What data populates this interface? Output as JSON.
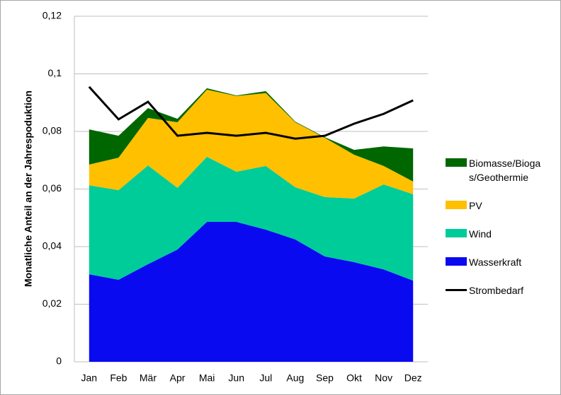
{
  "chart_data": {
    "type": "area",
    "y_label": "Monatliche Anteil an  der Jahrespoduktion",
    "categories": [
      "Jan",
      "Feb",
      "Mär",
      "Apr",
      "Mai",
      "Jun",
      "Jul",
      "Aug",
      "Sep",
      "Okt",
      "Nov",
      "Dez"
    ],
    "stacked": true,
    "series": [
      {
        "name": "Wasserkraft",
        "color": "#0a0af0",
        "values": [
          0.0304,
          0.0285,
          0.0339,
          0.039,
          0.0486,
          0.0486,
          0.0459,
          0.0425,
          0.0366,
          0.0346,
          0.0321,
          0.0282
        ]
      },
      {
        "name": "Wind",
        "color": "#00cc99",
        "values": [
          0.0309,
          0.0311,
          0.0343,
          0.0214,
          0.0226,
          0.0174,
          0.0221,
          0.0181,
          0.0206,
          0.0221,
          0.0295,
          0.03
        ]
      },
      {
        "name": "PV",
        "color": "#ffc000",
        "values": [
          0.0072,
          0.0113,
          0.0165,
          0.0228,
          0.0233,
          0.0263,
          0.0253,
          0.0226,
          0.0206,
          0.0152,
          0.0064,
          0.0044
        ]
      },
      {
        "name": "Biomasse/Biogas/Geothermie",
        "color": "#006600",
        "values": [
          0.0122,
          0.0076,
          0.0034,
          0.0012,
          0.0005,
          0.0002,
          0.0007,
          0.0002,
          0.0002,
          0.0017,
          0.0068,
          0.0115
        ]
      },
      {
        "name": "Strombedarf",
        "color": "#000000",
        "type": "line",
        "values": [
          0.0955,
          0.0842,
          0.0903,
          0.0785,
          0.0795,
          0.0785,
          0.0795,
          0.0775,
          0.0785,
          0.0827,
          0.0861,
          0.0908
        ]
      }
    ],
    "ylim": [
      0,
      0.12
    ],
    "yticks": [
      0,
      {
        "value": 0.02,
        "label": "0,02"
      },
      {
        "value": 0.04,
        "label": "0,04"
      },
      {
        "value": 0.06,
        "label": "0,06"
      },
      {
        "value": 0.08,
        "label": "0,08"
      },
      {
        "value": 0.1,
        "label": "0,1"
      },
      {
        "value": 0.12,
        "label": "0,12"
      }
    ],
    "grid": true,
    "legend": "right"
  }
}
